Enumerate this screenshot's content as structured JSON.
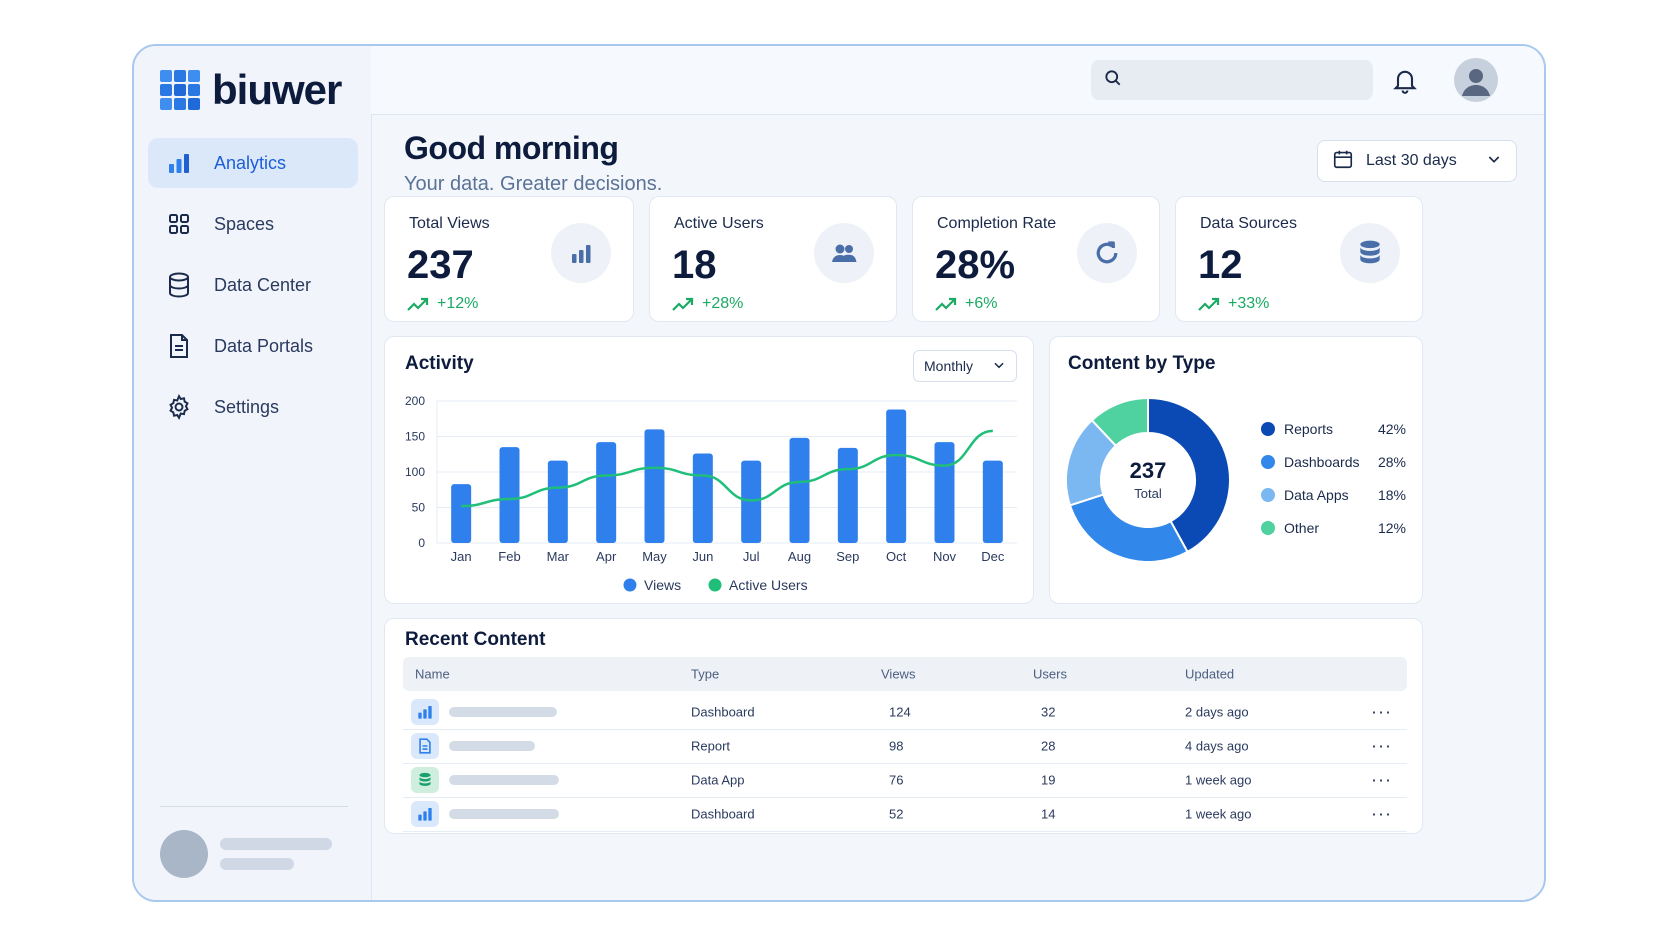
{
  "app": {
    "brand": "biuwer"
  },
  "sidebar": {
    "items": [
      {
        "label": "Analytics",
        "icon": "bar-chart-icon",
        "active": true
      },
      {
        "label": "Spaces",
        "icon": "grid-icon",
        "active": false
      },
      {
        "label": "Data Center",
        "icon": "database-icon",
        "active": false
      },
      {
        "label": "Data Portals",
        "icon": "document-icon",
        "active": false
      },
      {
        "label": "Settings",
        "icon": "gear-icon",
        "active": false
      }
    ]
  },
  "header": {
    "search_placeholder": "",
    "bell_icon": "bell-icon",
    "avatar_icon": "user-avatar-icon"
  },
  "greeting": {
    "title": "Good morning",
    "subtitle": "Your data. Greater decisions."
  },
  "date_range": {
    "selected": "Last 30 days"
  },
  "kpis": [
    {
      "label": "Total Views",
      "value": "237",
      "delta": "+12%",
      "icon": "bar-chart-icon"
    },
    {
      "label": "Active Users",
      "value": "18",
      "delta": "+28%",
      "icon": "users-icon"
    },
    {
      "label": "Completion Rate",
      "value": "28%",
      "delta": "+6%",
      "icon": "refresh-icon"
    },
    {
      "label": "Data Sources",
      "value": "12",
      "delta": "+33%",
      "icon": "database-icon"
    }
  ],
  "activity": {
    "title": "Activity",
    "period": "Monthly"
  },
  "content_by_type": {
    "title": "Content by Type"
  },
  "chart_data": [
    {
      "type": "bar",
      "title": "Activity",
      "categories": [
        "Jan",
        "Feb",
        "Mar",
        "Apr",
        "May",
        "Jun",
        "Jul",
        "Aug",
        "Sep",
        "Oct",
        "Nov",
        "Dec"
      ],
      "series": [
        {
          "name": "Views",
          "type": "bar",
          "color": "#2f80ed",
          "values": [
            83,
            135,
            116,
            142,
            160,
            126,
            116,
            148,
            134,
            188,
            142,
            116
          ]
        },
        {
          "name": "Active Users",
          "type": "line",
          "color": "#1fbf7a",
          "values": [
            52,
            62,
            78,
            95,
            106,
            95,
            60,
            86,
            104,
            124,
            109,
            158
          ]
        }
      ],
      "ylim": [
        0,
        200
      ],
      "yticks": [
        "0",
        "50",
        "100",
        "150",
        "200"
      ],
      "grid": true,
      "legend": "bottom"
    },
    {
      "type": "pie",
      "title": "Content by Type",
      "center_value": "237",
      "center_label": "Total",
      "slices": [
        {
          "label": "Reports",
          "value": 42,
          "display": "42%",
          "color": "#0b4ab5"
        },
        {
          "label": "Dashboards",
          "value": 28,
          "display": "28%",
          "color": "#3288ea"
        },
        {
          "label": "Data Apps",
          "value": 18,
          "display": "18%",
          "color": "#7bb8f2"
        },
        {
          "label": "Other",
          "value": 12,
          "display": "12%",
          "color": "#4fd1a0"
        }
      ],
      "legend": "right"
    }
  ],
  "recent": {
    "title": "Recent Content",
    "columns": [
      "Name",
      "Type",
      "Views",
      "Users",
      "Updated"
    ],
    "rows": [
      {
        "type": "Dashboard",
        "views": "124",
        "users": "32",
        "updated": "2 days ago",
        "icon": "bar-chart-icon",
        "icon_bg": "#d9e8fb",
        "icon_color": "#2f80ed"
      },
      {
        "type": "Report",
        "views": "98",
        "users": "28",
        "updated": "4 days ago",
        "icon": "document-icon",
        "icon_bg": "#d9e8fb",
        "icon_color": "#2f80ed"
      },
      {
        "type": "Data App",
        "views": "76",
        "users": "19",
        "updated": "1 week ago",
        "icon": "database-icon",
        "icon_bg": "#cfeede",
        "icon_color": "#1aa06a"
      },
      {
        "type": "Dashboard",
        "views": "52",
        "users": "14",
        "updated": "1 week ago",
        "icon": "bar-chart-icon",
        "icon_bg": "#d9e8fb",
        "icon_color": "#2f80ed"
      }
    ],
    "more_label": "···"
  },
  "colors": {
    "accent": "#2f80ed",
    "positive": "#1aaa64",
    "navy": "#0d1b3d"
  }
}
